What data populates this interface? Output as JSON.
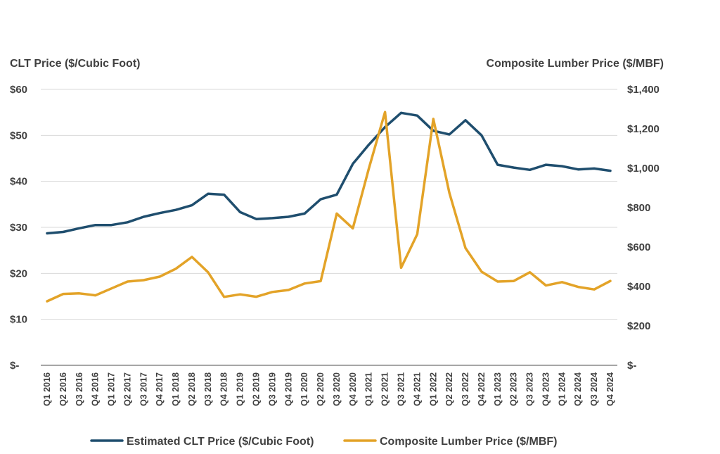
{
  "chart_data": {
    "type": "line",
    "left_axis_title": "CLT Price ($/Cubic Foot)",
    "right_axis_title": "Composite Lumber Price ($/MBF)",
    "left_ticks": [
      "$-",
      "$10",
      "$20",
      "$30",
      "$40",
      "$50",
      "$60"
    ],
    "right_ticks": [
      "$-",
      "$200",
      "$400",
      "$600",
      "$800",
      "$1,000",
      "$1,200",
      "$1,400"
    ],
    "ylim_left": [
      0,
      60
    ],
    "ylim_right": [
      0,
      1400
    ],
    "grid": true,
    "legend_position": "bottom",
    "categories": [
      "Q1 2016",
      "Q2 2016",
      "Q3 2016",
      "Q4 2016",
      "Q1 2017",
      "Q2 2017",
      "Q3 2017",
      "Q4 2017",
      "Q1 2018",
      "Q2 2018",
      "Q3 2018",
      "Q4 2018",
      "Q1 2019",
      "Q2 2019",
      "Q3 2019",
      "Q4 2019",
      "Q1 2020",
      "Q2 2020",
      "Q3 2020",
      "Q4 2020",
      "Q1 2021",
      "Q2 2021",
      "Q3 2021",
      "Q4 2021",
      "Q1 2022",
      "Q2 2022",
      "Q3 2022",
      "Q4 2022",
      "Q1 2023",
      "Q2 2023",
      "Q3 2023",
      "Q4 2023",
      "Q1 2024",
      "Q2 2024",
      "Q3 2024",
      "Q4 2024"
    ],
    "series": [
      {
        "name": "Estimated CLT Price ($/Cubic Foot)",
        "axis": "left",
        "color": "#1f4e6e",
        "values": [
          28.7,
          29.0,
          29.8,
          30.5,
          30.5,
          31.1,
          32.3,
          33.1,
          33.8,
          34.8,
          37.3,
          37.1,
          33.3,
          31.8,
          32.0,
          32.3,
          33.0,
          36.1,
          37.1,
          43.8,
          48.0,
          51.8,
          54.9,
          54.3,
          51.0,
          50.2,
          53.3,
          50.0,
          43.6,
          43.0,
          42.5,
          43.6,
          43.3,
          42.6,
          42.8,
          42.3
        ]
      },
      {
        "name": "Composite Lumber Price ($/MBF)",
        "axis": "right",
        "color": "#e3a328",
        "values": [
          325,
          362,
          365,
          355,
          390,
          425,
          432,
          450,
          490,
          550,
          472,
          347,
          360,
          348,
          372,
          382,
          415,
          427,
          770,
          695,
          1000,
          1285,
          495,
          665,
          1250,
          875,
          595,
          475,
          425,
          428,
          472,
          405,
          422,
          398,
          385,
          428
        ]
      }
    ]
  }
}
